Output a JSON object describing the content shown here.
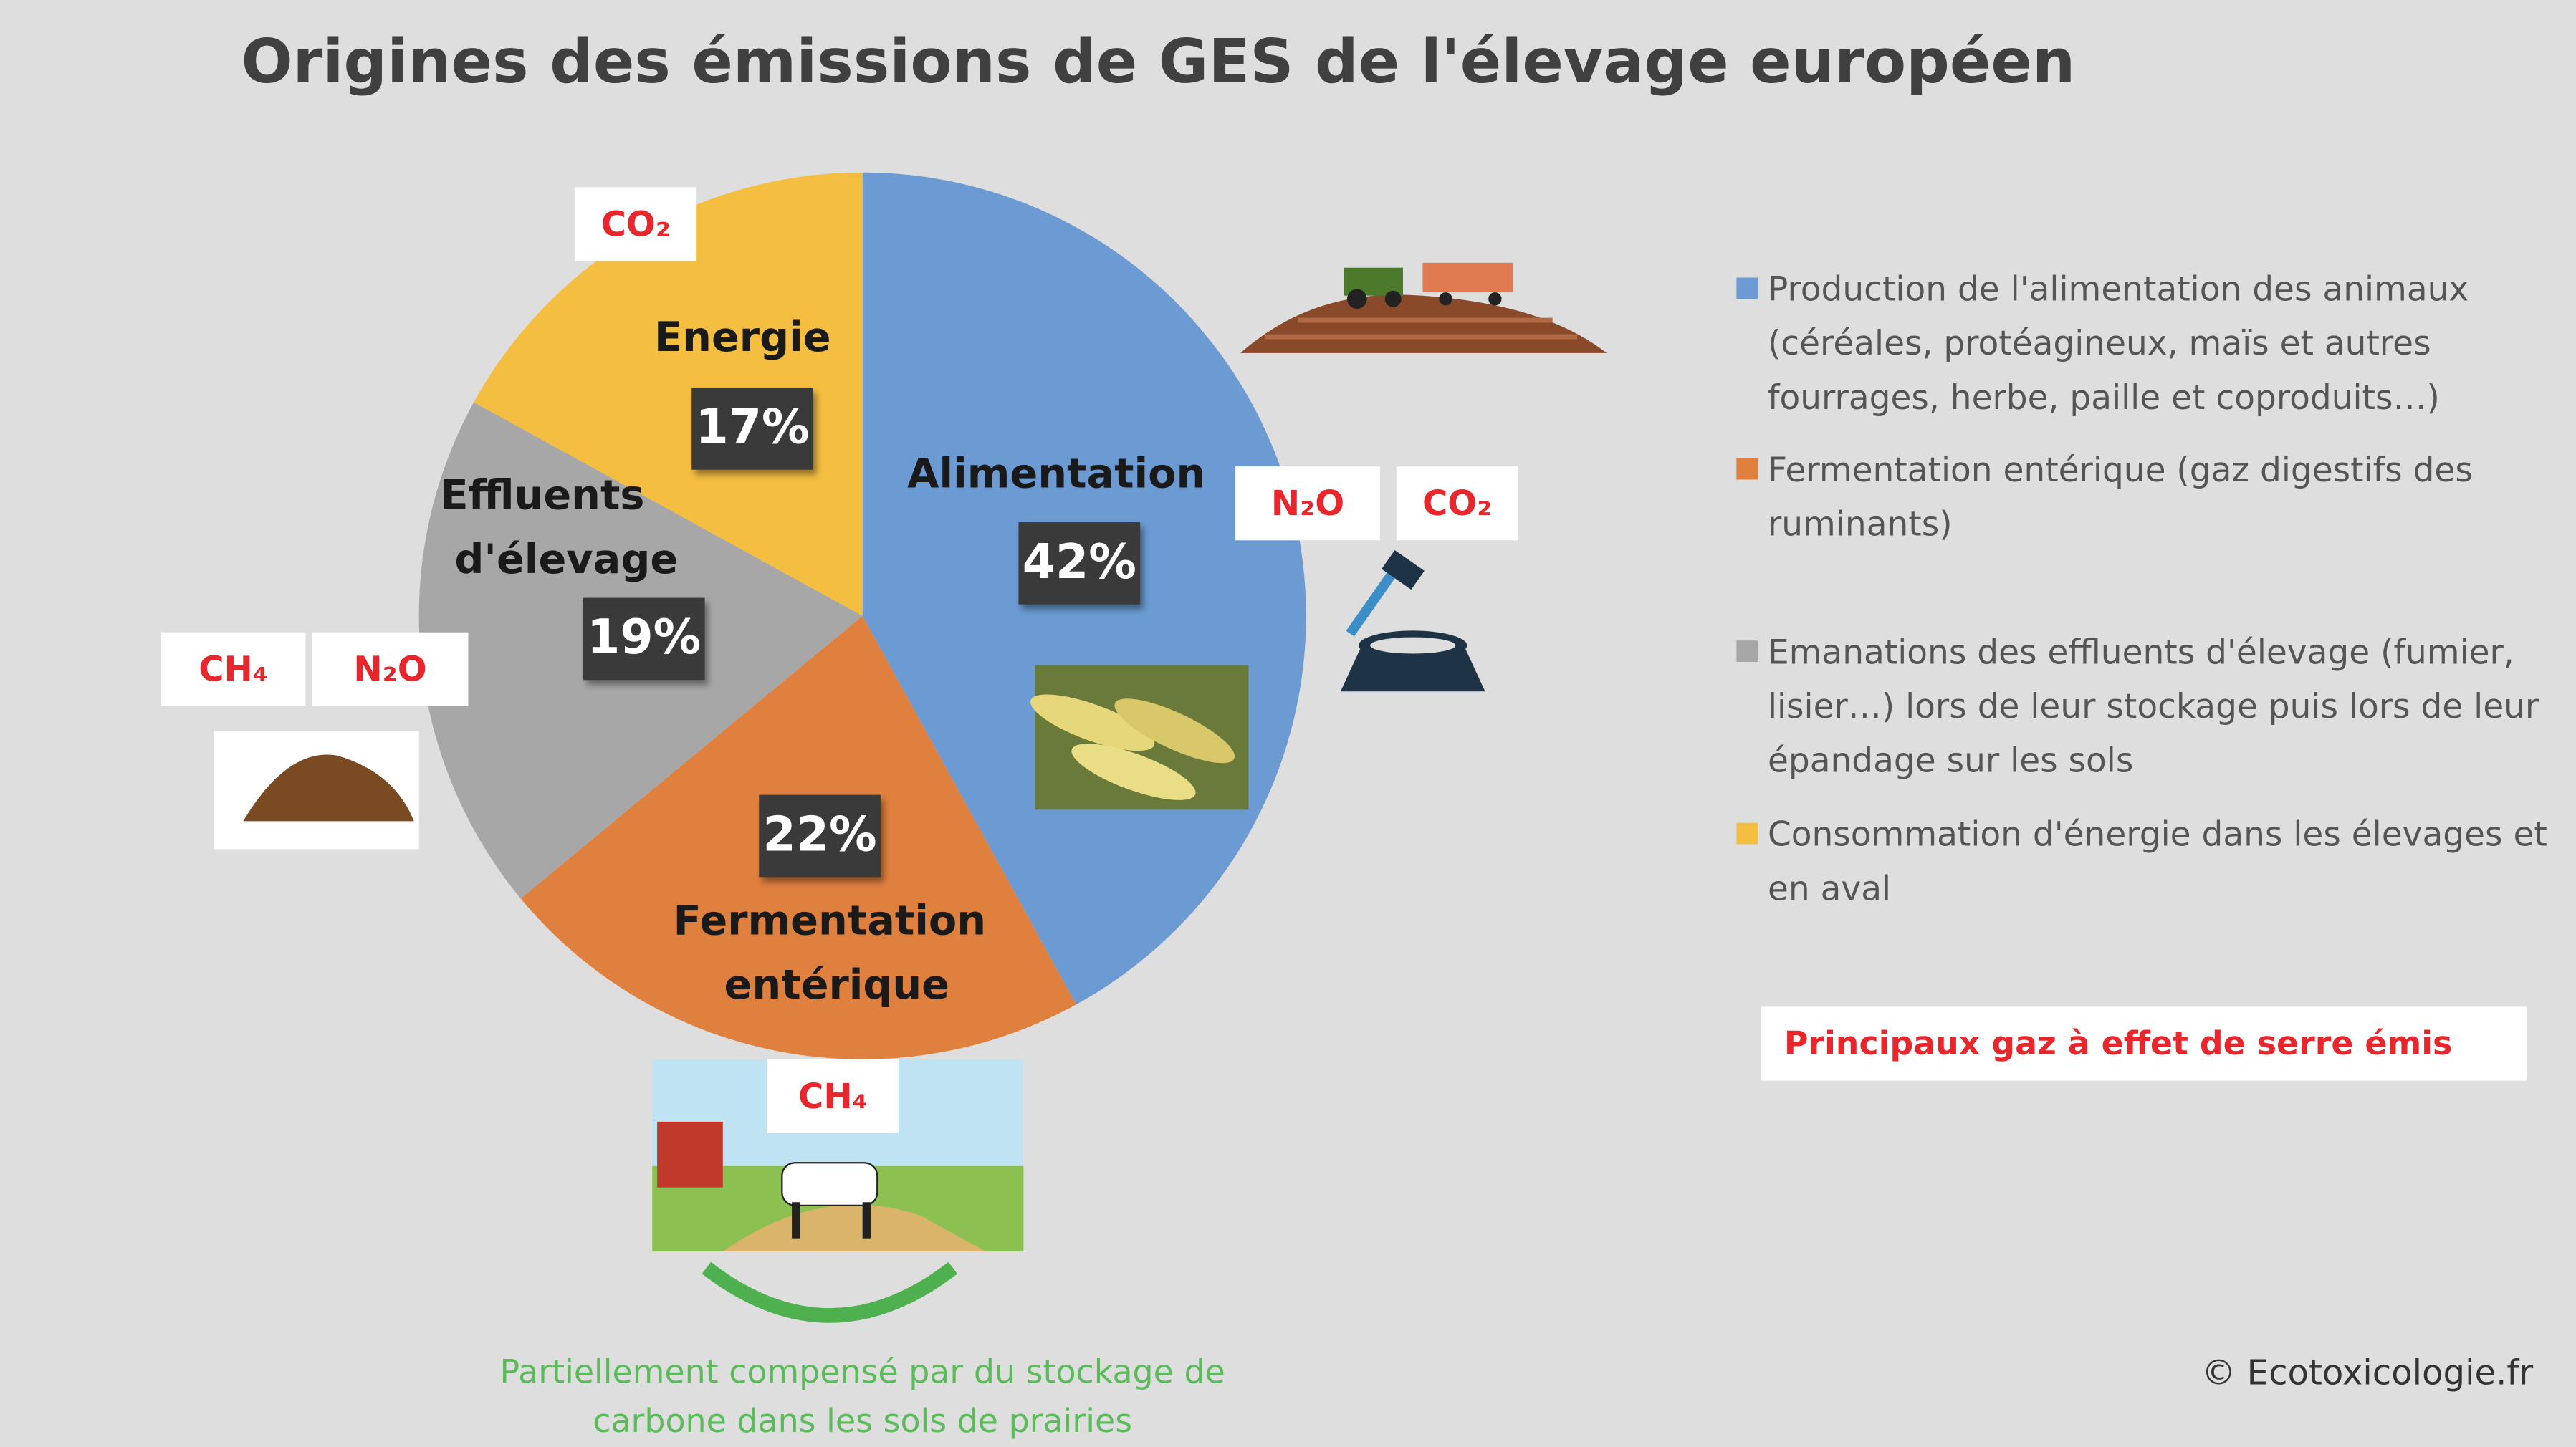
{
  "chart_data": {
    "type": "pie",
    "title": "Origines des émissions de GES de l'élevage européen",
    "categories": [
      "Alimentation",
      "Fermentation entérique",
      "Effluents d'élevage",
      "Energie"
    ],
    "values": [
      42,
      22,
      19,
      17
    ],
    "value_labels": [
      "42%",
      "22%",
      "19%",
      "17%"
    ],
    "colors": [
      "#6b9bd2",
      "#e0803f",
      "#a7a7a7",
      "#f4be41"
    ],
    "legend": [
      "Production  de l'alimentation des animaux (céréales, protéagineux, maïs et autres fourrages, herbe, paille et coproduits…)",
      "Fermentation entérique (gaz digestifs des ruminants)",
      "Emanations des effluents d'élevage (fumier, lisier…) lors de leur stockage puis lors de leur épandage sur les sols",
      "Consommation d'énergie dans les élevages et en aval"
    ],
    "gas_labels": [
      "CO₂",
      "N₂O",
      "CO₂",
      "CH₄",
      "N₂O",
      "CH₄"
    ],
    "gas_key": "Principaux gaz à effet de serre émis",
    "note": "Partiellement compensé par du stockage de carbone dans les sols de prairies",
    "credit": "© Ecotoxicologie.fr"
  }
}
